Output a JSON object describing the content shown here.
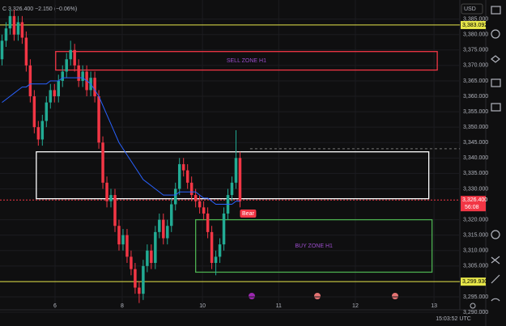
{
  "chart_data": {
    "type": "candlestick",
    "header": {
      "symbol_line": "C 3,326.400 −2.150 (−0.06%)",
      "currency": "USD",
      "clock": "15:03:52 UTC"
    },
    "colors": {
      "up": "#22ab94",
      "down": "#f23645",
      "ma": "#2962ff"
    },
    "open": [
      3372,
      3378,
      3382,
      3386,
      3380,
      3384,
      3379,
      3370,
      3360,
      3350,
      3346,
      3352,
      3358,
      3362,
      3360,
      3365,
      3368,
      3372,
      3375,
      3370,
      3365,
      3368,
      3362,
      3366,
      3360,
      3345,
      3332,
      3326,
      3328,
      3318,
      3312,
      3315,
      3308,
      3304,
      3298,
      3296,
      3305,
      3310,
      3306,
      3316,
      3320,
      3314,
      3318,
      3325,
      3330,
      3338,
      3336,
      3332,
      3328,
      3326,
      3324,
      3322,
      3316,
      3306,
      3308,
      3312,
      3322,
      3328,
      3332,
      3340
    ],
    "high": [
      3380,
      3384,
      3388,
      3388,
      3386,
      3386,
      3381,
      3372,
      3362,
      3352,
      3354,
      3360,
      3364,
      3364,
      3367,
      3370,
      3374,
      3378,
      3377,
      3372,
      3370,
      3370,
      3368,
      3368,
      3362,
      3347,
      3334,
      3330,
      3330,
      3320,
      3317,
      3317,
      3310,
      3306,
      3300,
      3307,
      3312,
      3312,
      3318,
      3322,
      3322,
      3320,
      3327,
      3332,
      3340,
      3340,
      3338,
      3334,
      3330,
      3328,
      3326,
      3324,
      3318,
      3310,
      3314,
      3324,
      3330,
      3334,
      3349,
      3342
    ],
    "low": [
      3370,
      3376,
      3380,
      3378,
      3378,
      3377,
      3368,
      3358,
      3348,
      3344,
      3344,
      3350,
      3356,
      3358,
      3358,
      3363,
      3366,
      3370,
      3368,
      3363,
      3363,
      3360,
      3360,
      3358,
      3343,
      3330,
      3324,
      3324,
      3316,
      3310,
      3310,
      3306,
      3302,
      3296,
      3293,
      3294,
      3303,
      3304,
      3304,
      3314,
      3312,
      3312,
      3316,
      3323,
      3328,
      3334,
      3330,
      3326,
      3324,
      3322,
      3320,
      3314,
      3304,
      3302,
      3306,
      3310,
      3320,
      3326,
      3330,
      3324
    ],
    "close": [
      3378,
      3382,
      3386,
      3380,
      3384,
      3379,
      3370,
      3360,
      3350,
      3346,
      3352,
      3358,
      3362,
      3360,
      3365,
      3368,
      3372,
      3375,
      3370,
      3365,
      3368,
      3362,
      3366,
      3360,
      3345,
      3332,
      3326,
      3328,
      3318,
      3312,
      3315,
      3308,
      3304,
      3298,
      3296,
      3305,
      3310,
      3306,
      3316,
      3320,
      3314,
      3318,
      3325,
      3330,
      3338,
      3336,
      3332,
      3328,
      3326,
      3324,
      3322,
      3316,
      3306,
      3308,
      3312,
      3322,
      3328,
      3332,
      3340,
      3326
    ],
    "ma": [
      3358,
      3359,
      3360,
      3361,
      3362,
      3363,
      3363,
      3364,
      3364,
      3364,
      3364,
      3364,
      3365,
      3365,
      3365,
      3366,
      3366,
      3366,
      3366,
      3366,
      3366,
      3365,
      3364,
      3362,
      3360,
      3357,
      3354,
      3351,
      3348,
      3345,
      3343,
      3341,
      3339,
      3337,
      3335,
      3333,
      3332,
      3331,
      3330,
      3329,
      3328,
      3328,
      3328,
      3328,
      3329,
      3329,
      3329,
      3329,
      3329,
      3328,
      3327,
      3327,
      3326,
      3325,
      3325,
      3325,
      3325,
      3325,
      3326,
      3326
    ],
    "xlim": [
      0,
      114
    ],
    "ylim": [
      3290.8,
      3391.2
    ],
    "xticks": [
      {
        "value": 13.65,
        "label": "6"
      },
      {
        "value": 30.3,
        "label": "8"
      },
      {
        "value": 50.2,
        "label": "10"
      },
      {
        "value": 69.1,
        "label": "11"
      },
      {
        "value": 88.1,
        "label": "12"
      },
      {
        "value": 107.6,
        "label": "13"
      }
    ],
    "yticks": [
      {
        "value": 3385,
        "label": "3,385.000"
      },
      {
        "value": 3380,
        "label": "3,380.000"
      },
      {
        "value": 3375,
        "label": "3,375.000"
      },
      {
        "value": 3370,
        "label": "3,370.000"
      },
      {
        "value": 3365,
        "label": "3,365.000"
      },
      {
        "value": 3360,
        "label": "3,360.000"
      },
      {
        "value": 3355,
        "label": "3,355.000"
      },
      {
        "value": 3350,
        "label": "3,350.000"
      },
      {
        "value": 3345,
        "label": "3,345.000"
      },
      {
        "value": 3340,
        "label": "3,340.000"
      },
      {
        "value": 3335,
        "label": "3,335.000"
      },
      {
        "value": 3330,
        "label": "3,330.000"
      },
      {
        "value": 3320,
        "label": "3,320.000"
      },
      {
        "value": 3315,
        "label": "3,315.000"
      },
      {
        "value": 3310,
        "label": "3,310.000"
      },
      {
        "value": 3305,
        "label": "3,305.000"
      },
      {
        "value": 3295,
        "label": "3,295.000"
      },
      {
        "value": 3290,
        "label": "3,290.000"
      }
    ],
    "grid": true,
    "zones": [
      {
        "label": "SELL ZONE H1",
        "top": 3374.5,
        "bottom": 3368.5,
        "x0": 13.8,
        "x1": 108.4,
        "color": "#f23645"
      },
      {
        "label": "",
        "top": 3342,
        "bottom": 3326.8,
        "x0": 9,
        "x1": 106.3,
        "color": "#ffffff"
      },
      {
        "label": "BUY ZONE H1",
        "top": 3320,
        "bottom": 3303,
        "x0": 48.5,
        "x1": 107.1,
        "color": "#4caf50"
      }
    ],
    "levels": [
      {
        "value": 3383.092,
        "label": "3,383.092",
        "color": "#e8e84a"
      },
      {
        "value": 3299.93,
        "label": "3,299.930",
        "color": "#e8e84a"
      }
    ],
    "current": {
      "value": 3326.4,
      "label": "3,326.400",
      "countdown": "56:08",
      "color": "#f23645"
    },
    "dashed_level": 3343,
    "marker": {
      "text": "Bear",
      "x": 61.5,
      "price": 3322
    }
  }
}
